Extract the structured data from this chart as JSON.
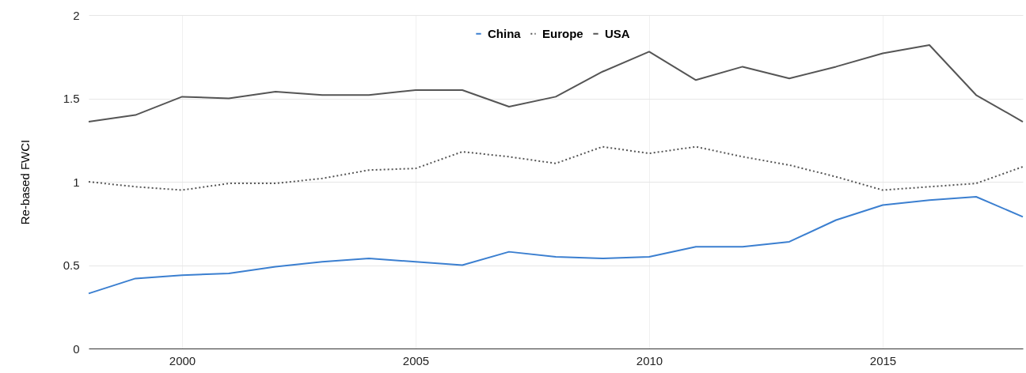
{
  "chart_data": {
    "type": "line",
    "ylabel": "Re-based FWCI",
    "x": [
      1998,
      1999,
      2000,
      2001,
      2002,
      2003,
      2004,
      2005,
      2006,
      2007,
      2008,
      2009,
      2010,
      2011,
      2012,
      2013,
      2014,
      2015,
      2016,
      2017,
      2018
    ],
    "series": [
      {
        "name": "China",
        "color": "#3b7fd0",
        "line_style": "solid",
        "values": [
          0.33,
          0.42,
          0.44,
          0.45,
          0.49,
          0.52,
          0.54,
          0.52,
          0.5,
          0.58,
          0.55,
          0.54,
          0.55,
          0.61,
          0.61,
          0.64,
          0.77,
          0.86,
          0.89,
          0.91,
          0.79
        ]
      },
      {
        "name": "Europe",
        "color": "#555555",
        "line_style": "dotted",
        "values": [
          1.0,
          0.97,
          0.95,
          0.99,
          0.99,
          1.02,
          1.07,
          1.08,
          1.18,
          1.15,
          1.11,
          1.21,
          1.17,
          1.21,
          1.15,
          1.1,
          1.03,
          0.95,
          0.97,
          0.99,
          1.09
        ]
      },
      {
        "name": "USA",
        "color": "#555555",
        "line_style": "solid",
        "values": [
          1.36,
          1.4,
          1.51,
          1.5,
          1.54,
          1.52,
          1.52,
          1.55,
          1.55,
          1.45,
          1.51,
          1.66,
          1.78,
          1.61,
          1.69,
          1.62,
          1.69,
          1.77,
          1.82,
          1.52,
          1.36
        ]
      }
    ],
    "xlim": [
      1998,
      2018
    ],
    "xticks": [
      2000,
      2005,
      2010,
      2015
    ],
    "ylim": [
      0,
      2
    ],
    "yticks": [
      0,
      0.5,
      1,
      1.5,
      2
    ],
    "grid": true,
    "legend": "top",
    "marker": "none"
  }
}
